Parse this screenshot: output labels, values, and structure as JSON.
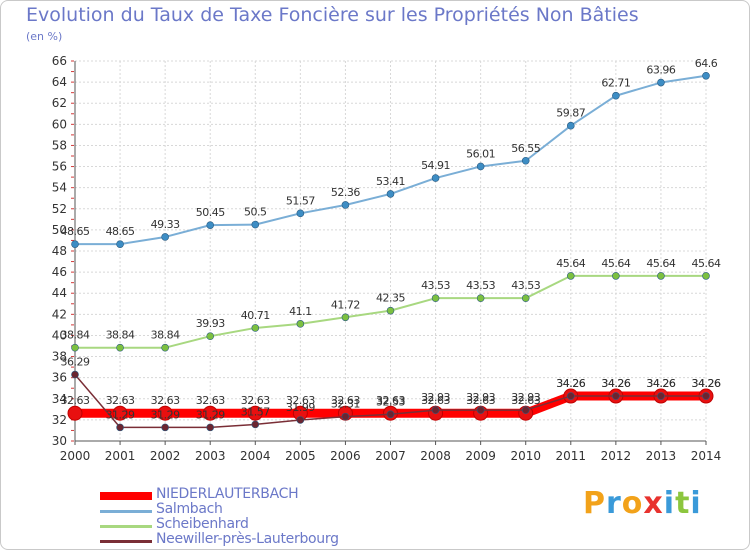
{
  "header": {
    "title": "Evolution du Taux de Taxe Foncière sur les Propriétés Non Bâties",
    "unit": "(en %)"
  },
  "brand": {
    "letters": [
      "P",
      "r",
      "o",
      "x",
      "i",
      "t",
      "i"
    ],
    "colors": [
      "#f2a21a",
      "#3a9ad9",
      "#f2a21a",
      "#e8322e",
      "#3a9ad9",
      "#8cc63e",
      "#3a9ad9"
    ]
  },
  "chart_data": {
    "type": "line",
    "title": "Evolution du Taux de Taxe Foncière sur les Propriétés Non Bâties",
    "ylabel": "(en %)",
    "xlabel": "",
    "x": [
      "2000",
      "2001",
      "2002",
      "2003",
      "2004",
      "2005",
      "2006",
      "2007",
      "2008",
      "2009",
      "2010",
      "2011",
      "2012",
      "2013",
      "2014"
    ],
    "ylim": [
      30,
      66
    ],
    "yticks": [
      "30",
      "32",
      "34",
      "36",
      "38",
      "40",
      "42",
      "44",
      "46",
      "48",
      "50",
      "52",
      "54",
      "56",
      "58",
      "60",
      "62",
      "64",
      "66"
    ],
    "grid": true,
    "legend_position": "bottom-left",
    "series": [
      {
        "name": "NIEDERLAUTERBACH",
        "color": "#ff0000",
        "marker_color": "#e81010",
        "values": [
          32.63,
          32.63,
          32.63,
          32.63,
          32.63,
          32.63,
          32.63,
          32.63,
          32.63,
          32.63,
          32.63,
          34.26,
          34.26,
          34.26,
          34.26
        ],
        "labels": [
          "32.63",
          "32.63",
          "32.63",
          "32.63",
          "32.63",
          "32.63",
          "32.63",
          "32.63",
          "32.63",
          "32.63",
          "32.63",
          "34.26",
          "34.26",
          "34.26",
          "34.26"
        ]
      },
      {
        "name": "Salmbach",
        "color": "#7aaed6",
        "marker_color": "#3d8dc4",
        "values": [
          48.65,
          48.65,
          49.33,
          50.45,
          50.5,
          51.57,
          52.36,
          53.41,
          54.91,
          56.01,
          56.55,
          59.87,
          62.71,
          63.96,
          64.6
        ],
        "labels": [
          "48.65",
          "48.65",
          "49.33",
          "50.45",
          "50.5",
          "51.57",
          "52.36",
          "53.41",
          "54.91",
          "56.01",
          "56.55",
          "59.87",
          "62.71",
          "63.96",
          "64.6"
        ]
      },
      {
        "name": "Scheibenhard",
        "color": "#a8d880",
        "marker_color": "#7cc040",
        "values": [
          38.84,
          38.84,
          38.84,
          39.93,
          40.71,
          41.1,
          41.72,
          42.35,
          43.53,
          43.53,
          43.53,
          45.64,
          45.64,
          45.64,
          45.64
        ],
        "labels": [
          "38.84",
          "38.84",
          "38.84",
          "39.93",
          "40.71",
          "41.1",
          "41.72",
          "42.35",
          "43.53",
          "43.53",
          "43.53",
          "45.64",
          "45.64",
          "45.64",
          "45.64"
        ]
      },
      {
        "name": "Neewiller-près-Lauterbourg",
        "color": "#7a2e36",
        "marker_color": "#6b2530",
        "values": [
          36.29,
          31.29,
          31.29,
          31.29,
          31.57,
          31.99,
          32.31,
          32.53,
          32.93,
          32.93,
          32.93,
          34.26,
          34.26,
          34.26,
          34.26
        ],
        "labels": [
          "36.29",
          "31.29",
          "31.29",
          "31.29",
          "31.57",
          "31.99",
          "32.31",
          "32.53",
          "32.93",
          "32.93",
          "32.93",
          "34.26",
          "34.26",
          "34.26",
          "34.26"
        ]
      }
    ]
  }
}
